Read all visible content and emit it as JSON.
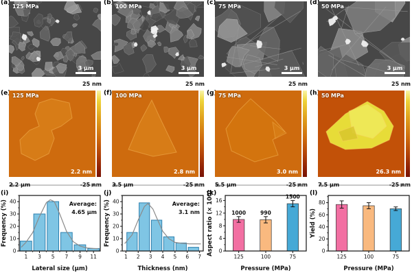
{
  "colors": {
    "frame": "#111111",
    "hist_fill": "#7fc5e4",
    "hist_edge": "#2e7fae",
    "curve": "#8a8a8a",
    "bar_pink": "#f26fa2",
    "bar_orange": "#f9b97f",
    "bar_blue": "#46a9d6",
    "sem_bg": "#474747",
    "afm_bg": "#ce6b0e",
    "afm_bg_h": "#c25108",
    "afm_flake": "#d97e18",
    "afm_flake_h": "#e7dc38"
  },
  "figure": {
    "sem_row": [
      {
        "panel": "(a)",
        "pressure": "125 MPa",
        "scalebar": "3 μm"
      },
      {
        "panel": "(b)",
        "pressure": "100 MPa",
        "scalebar": "3 μm"
      },
      {
        "panel": "(c)",
        "pressure": "75 MPa",
        "scalebar": "3 μm"
      },
      {
        "panel": "(d)",
        "pressure": "50 MPa",
        "scalebar": "3 μm"
      }
    ],
    "afm_row": [
      {
        "panel": "(e)",
        "pressure": "125 MPa",
        "colorbar_top": "25 nm",
        "colorbar_bottom": "-25 nm",
        "thickness": "2.2 nm",
        "lateral": "2.2 μm"
      },
      {
        "panel": "(f)",
        "pressure": "100 MPa",
        "colorbar_top": "25 nm",
        "colorbar_bottom": "-25 nm",
        "thickness": "2.8 nm",
        "lateral": "3.5 μm"
      },
      {
        "panel": "(g)",
        "pressure": "75 MPa",
        "colorbar_top": "25 nm",
        "colorbar_bottom": "-25 nm",
        "thickness": "3.0 nm",
        "lateral": "5.5 μm"
      },
      {
        "panel": "(h)",
        "pressure": "50 MPa",
        "colorbar_top": "25 nm",
        "colorbar_bottom": "-25 nm",
        "thickness": "26.3 nm",
        "lateral": "7.5 μm"
      }
    ]
  },
  "chart_data": [
    {
      "panel": "(i)",
      "type": "histogram",
      "categories": [
        1,
        3,
        5,
        7,
        9,
        11
      ],
      "values": [
        8,
        30,
        40,
        15,
        5,
        2
      ],
      "bar_width": 1.7,
      "xlim": [
        0,
        12
      ],
      "ylim": [
        0,
        45
      ],
      "xticks": [
        1,
        3,
        5,
        7,
        9,
        11
      ],
      "yticks": [
        0,
        10,
        20,
        30,
        40
      ],
      "yticks_minor": [
        5,
        15,
        25,
        35,
        45
      ],
      "xticks_minor": [
        2,
        4,
        6,
        8,
        10
      ],
      "xlabel": "Lateral size (μm)",
      "ylabel": "Frequency (%)",
      "annotation": [
        "Average:",
        "4.65 μm"
      ],
      "curve_points": [
        [
          0.3,
          3
        ],
        [
          1,
          7
        ],
        [
          2,
          15
        ],
        [
          3,
          28
        ],
        [
          4,
          39
        ],
        [
          4.6,
          41.5
        ],
        [
          5.2,
          40
        ],
        [
          6,
          30
        ],
        [
          7,
          16
        ],
        [
          8,
          7.5
        ],
        [
          9,
          4
        ],
        [
          10,
          2.5
        ],
        [
          11,
          2
        ],
        [
          11.7,
          1.8
        ]
      ]
    },
    {
      "panel": "(j)",
      "type": "histogram",
      "categories": [
        1.5,
        2.5,
        3.5,
        4.5,
        5.5,
        6.5
      ],
      "values": [
        15,
        39,
        25,
        11.5,
        6.5,
        3
      ],
      "bar_width": 0.85,
      "xlim": [
        0.7,
        7.3
      ],
      "ylim": [
        0,
        45
      ],
      "xticks": [
        1,
        2,
        3,
        4,
        5,
        6,
        7
      ],
      "yticks": [
        0,
        10,
        20,
        30,
        40
      ],
      "yticks_minor": [
        5,
        15,
        25,
        35,
        45
      ],
      "xlabel": "Thickness (nm)",
      "ylabel": "Frequency (%)",
      "annotation": [
        "Average:",
        "3.1 nm"
      ],
      "curve_points": [
        [
          0.9,
          6
        ],
        [
          1.5,
          13
        ],
        [
          2,
          25
        ],
        [
          2.5,
          36
        ],
        [
          2.8,
          38.5
        ],
        [
          3.2,
          34
        ],
        [
          3.5,
          27
        ],
        [
          4,
          16
        ],
        [
          4.5,
          10
        ],
        [
          5,
          7
        ],
        [
          5.5,
          6.2
        ],
        [
          6.2,
          5.8
        ],
        [
          7.1,
          5.8
        ]
      ]
    },
    {
      "panel": "(k)",
      "type": "bar",
      "categories": [
        "125",
        "100",
        "75"
      ],
      "values": [
        10,
        9.9,
        15
      ],
      "errors": [
        0.9,
        1.0,
        1.0
      ],
      "bar_labels": [
        "1000",
        "990",
        "1500"
      ],
      "colors": [
        "bar_pink",
        "bar_orange",
        "bar_blue"
      ],
      "ylim": [
        0,
        17.6
      ],
      "yticks": [
        0,
        4,
        8,
        12,
        16
      ],
      "yticks_minor": [
        2,
        6,
        10,
        14
      ],
      "xlabel": "Pressure (MPa)",
      "ylabel": "Aspect ratio (× 100)"
    },
    {
      "panel": "(l)",
      "type": "bar",
      "categories": [
        "125",
        "100",
        "75"
      ],
      "values": [
        77,
        75,
        70
      ],
      "errors": [
        6,
        5,
        3
      ],
      "colors": [
        "bar_pink",
        "bar_orange",
        "bar_blue"
      ],
      "ylim": [
        0,
        92
      ],
      "yticks": [
        0,
        20,
        40,
        60,
        80
      ],
      "yticks_minor": [
        10,
        30,
        50,
        70,
        90
      ],
      "xlabel": "Pressure (MPa)",
      "ylabel": "Yield (%)"
    }
  ]
}
